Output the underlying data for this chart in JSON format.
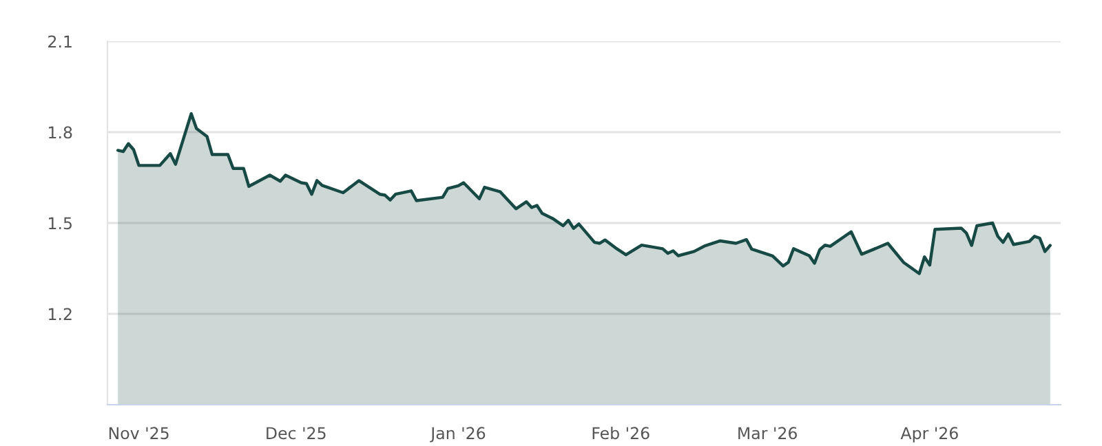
{
  "chart_data": {
    "type": "area",
    "x": [
      "2025-10-28",
      "2025-10-29",
      "2025-10-30",
      "2025-10-31",
      "2025-11-01",
      "2025-11-05",
      "2025-11-07",
      "2025-11-08",
      "2025-11-11",
      "2025-11-12",
      "2025-11-14",
      "2025-11-15",
      "2025-11-18",
      "2025-11-19",
      "2025-11-21",
      "2025-11-22",
      "2025-11-26",
      "2025-11-28",
      "2025-11-29",
      "2025-12-02",
      "2025-12-03",
      "2025-12-04",
      "2025-12-05",
      "2025-12-06",
      "2025-12-10",
      "2025-12-13",
      "2025-12-17",
      "2025-12-18",
      "2025-12-19",
      "2025-12-20",
      "2025-12-23",
      "2025-12-24",
      "2025-12-29",
      "2025-12-30",
      "2026-01-01",
      "2026-01-02",
      "2026-01-05",
      "2026-01-06",
      "2026-01-09",
      "2026-01-12",
      "2026-01-14",
      "2026-01-15",
      "2026-01-16",
      "2026-01-17",
      "2026-01-19",
      "2026-01-21",
      "2026-01-22",
      "2026-01-23",
      "2026-01-24",
      "2026-01-27",
      "2026-01-28",
      "2026-01-29",
      "2026-01-31",
      "2026-02-02",
      "2026-02-05",
      "2026-02-09",
      "2026-02-10",
      "2026-02-11",
      "2026-02-12",
      "2026-02-15",
      "2026-02-17",
      "2026-02-20",
      "2026-02-23",
      "2026-02-25",
      "2026-02-26",
      "2026-03-02",
      "2026-03-04",
      "2026-03-05",
      "2026-03-06",
      "2026-03-09",
      "2026-03-10",
      "2026-03-11",
      "2026-03-12",
      "2026-03-13",
      "2026-03-17",
      "2026-03-19",
      "2026-03-21",
      "2026-03-24",
      "2026-03-27",
      "2026-03-30",
      "2026-03-31",
      "2026-04-01",
      "2026-04-02",
      "2026-04-07",
      "2026-04-08",
      "2026-04-09",
      "2026-04-10",
      "2026-04-13",
      "2026-04-14",
      "2026-04-15",
      "2026-04-16",
      "2026-04-17",
      "2026-04-20",
      "2026-04-21",
      "2026-04-22",
      "2026-04-23",
      "2026-04-24"
    ],
    "series": [
      {
        "color": "#174a44",
        "values": [
          1.74,
          1.736,
          1.762,
          1.742,
          1.69,
          1.69,
          1.729,
          1.694,
          1.861,
          1.812,
          1.786,
          1.726,
          1.726,
          1.68,
          1.68,
          1.621,
          1.658,
          1.638,
          1.658,
          1.633,
          1.63,
          1.595,
          1.64,
          1.624,
          1.6,
          1.64,
          1.595,
          1.592,
          1.576,
          1.595,
          1.606,
          1.574,
          1.585,
          1.614,
          1.623,
          1.633,
          1.58,
          1.618,
          1.603,
          1.547,
          1.57,
          1.551,
          1.558,
          1.532,
          1.515,
          1.491,
          1.509,
          1.482,
          1.497,
          1.436,
          1.433,
          1.444,
          1.418,
          1.395,
          1.427,
          1.415,
          1.4,
          1.408,
          1.392,
          1.406,
          1.424,
          1.441,
          1.433,
          1.445,
          1.414,
          1.391,
          1.358,
          1.37,
          1.415,
          1.392,
          1.367,
          1.412,
          1.427,
          1.423,
          1.471,
          1.397,
          1.411,
          1.433,
          1.37,
          1.333,
          1.388,
          1.361,
          1.479,
          1.483,
          1.467,
          1.426,
          1.491,
          1.5,
          1.456,
          1.436,
          1.464,
          1.429,
          1.439,
          1.456,
          1.45,
          1.406,
          1.426
        ]
      }
    ],
    "xlim": [
      "2025-10-26",
      "2026-04-26"
    ],
    "xticks": [
      {
        "value": "2025-11-01",
        "label": "Nov '25"
      },
      {
        "value": "2025-12-01",
        "label": "Dec '25"
      },
      {
        "value": "2026-01-01",
        "label": "Jan '26"
      },
      {
        "value": "2026-02-01",
        "label": "Feb '26"
      },
      {
        "value": "2026-03-01",
        "label": "Mar '26"
      },
      {
        "value": "2026-04-01",
        "label": "Apr '26"
      }
    ],
    "ylim": [
      0.9,
      2.1
    ],
    "yticks": [
      1.2,
      1.5,
      1.8,
      2.1
    ],
    "grid": "y",
    "legend": false
  }
}
